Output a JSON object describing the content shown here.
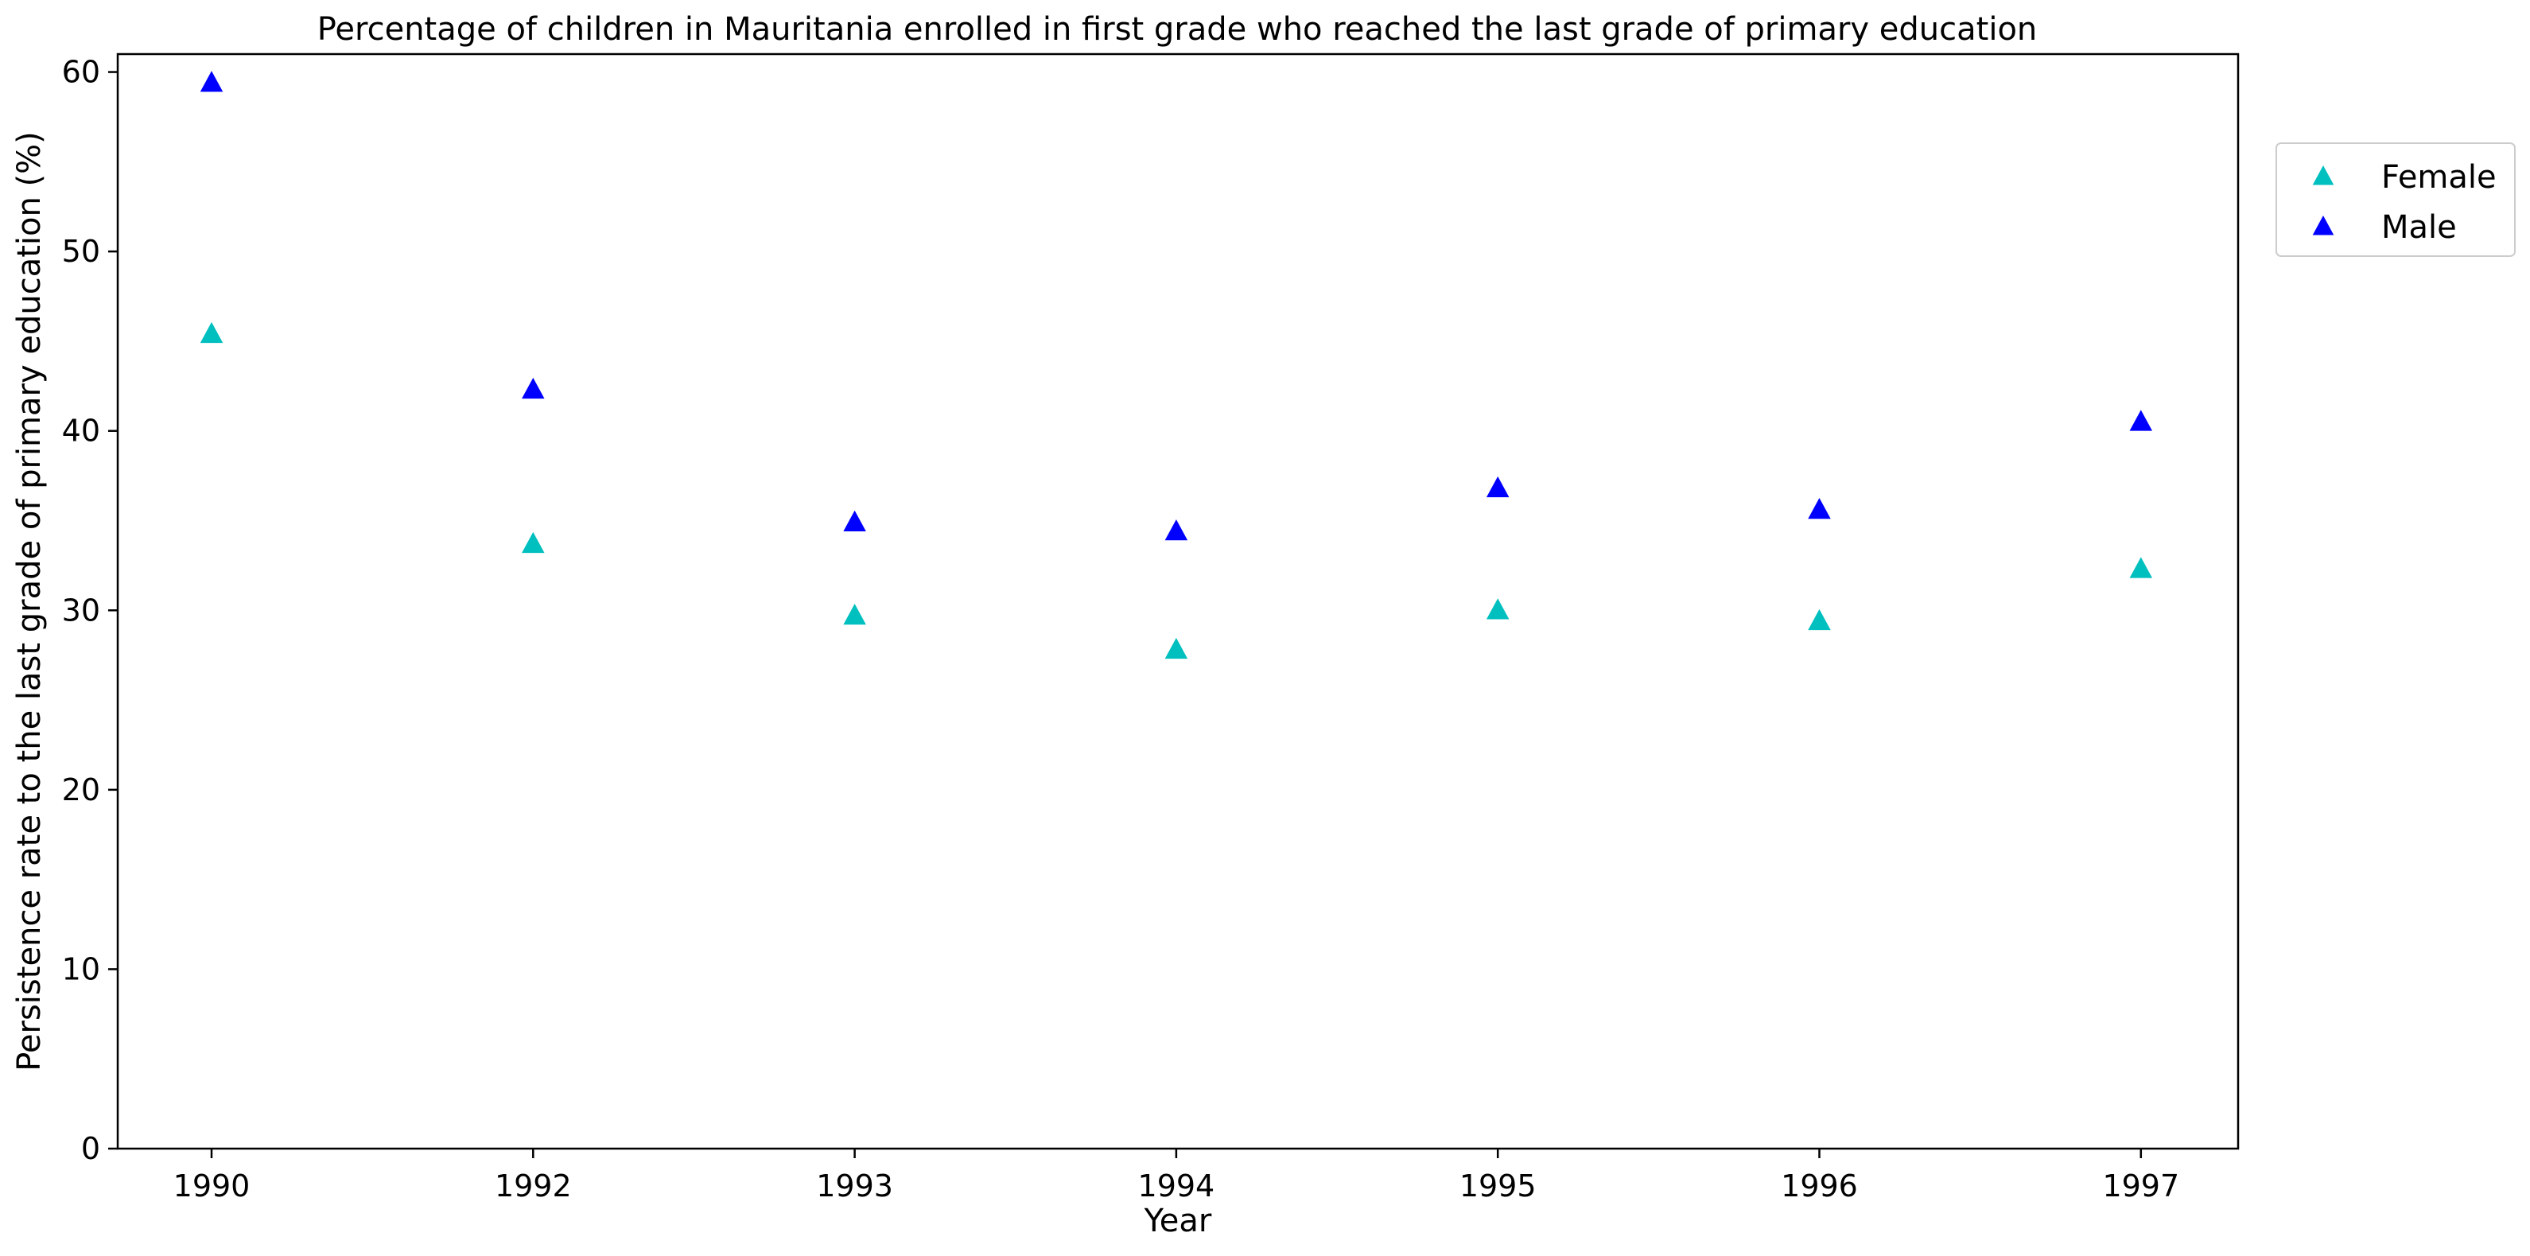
{
  "chart_data": {
    "type": "scatter",
    "title": "Percentage of children in Mauritania enrolled in first grade who reached the last grade of primary education",
    "xlabel": "Year",
    "ylabel": "Persistence rate to the last grade of primary education (%)",
    "categories": [
      "1990",
      "1992",
      "1993",
      "1994",
      "1995",
      "1996",
      "1997"
    ],
    "ylim": [
      0,
      61
    ],
    "yticks": [
      0,
      10,
      20,
      30,
      40,
      50,
      60
    ],
    "grid": false,
    "legend_position": "outside-top-right",
    "marker": "triangle",
    "series": [
      {
        "name": "Female",
        "color": "#00bfbf",
        "values": [
          45.4,
          33.7,
          29.7,
          27.8,
          30.0,
          29.4,
          32.3
        ]
      },
      {
        "name": "Male",
        "color": "#0000ff",
        "values": [
          59.4,
          42.3,
          34.9,
          34.4,
          36.8,
          35.6,
          40.5
        ]
      }
    ]
  }
}
